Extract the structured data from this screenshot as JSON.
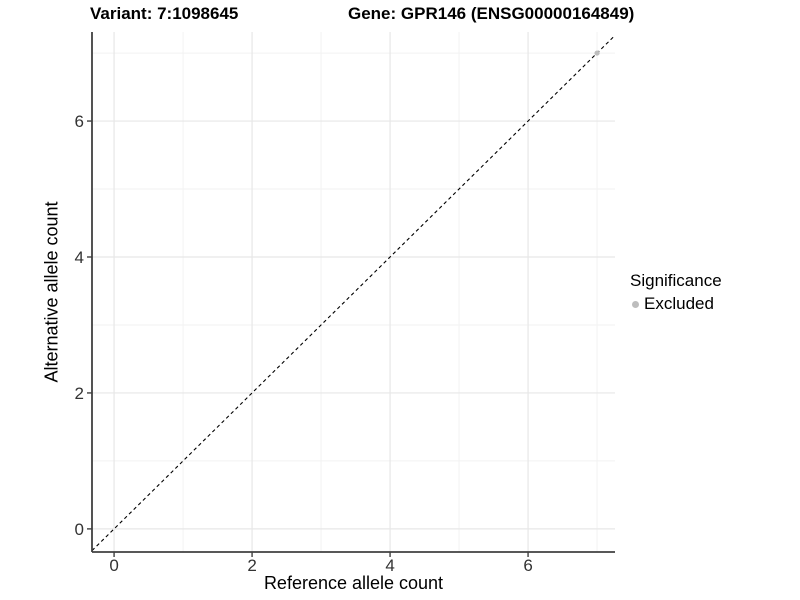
{
  "header": {
    "title_left": "Variant: 7:1098645",
    "title_right": "Gene: GPR146 (ENSG00000164849)"
  },
  "chart_data": {
    "type": "scatter",
    "xlabel": "Reference allele count",
    "ylabel": "Alternative allele count",
    "xlim": [
      -0.32,
      7.26
    ],
    "ylim": [
      -0.34,
      7.31
    ],
    "xticks": [
      0,
      2,
      4,
      6
    ],
    "yticks": [
      0,
      2,
      4,
      6
    ],
    "minor_xticks": [
      1,
      3,
      5,
      7
    ],
    "minor_yticks": [
      1,
      3,
      5,
      7
    ],
    "grid": "on",
    "reference_line": {
      "slope": 1,
      "intercept": 0,
      "style": "dashed",
      "color": "#000000"
    },
    "series": [
      {
        "name": "Excluded",
        "color": "#bdbdbd",
        "points": [
          {
            "x": 7,
            "y": 7
          }
        ]
      }
    ],
    "legend": {
      "title": "Significance",
      "position": "right",
      "items": [
        {
          "label": "Excluded",
          "color": "#bdbdbd"
        }
      ]
    },
    "colors": {
      "background": "#ffffff",
      "grid_major": "#e7e7e7",
      "grid_minor": "#f2f2f2",
      "axis_line": "#404040",
      "tick_label": "#333333"
    }
  }
}
